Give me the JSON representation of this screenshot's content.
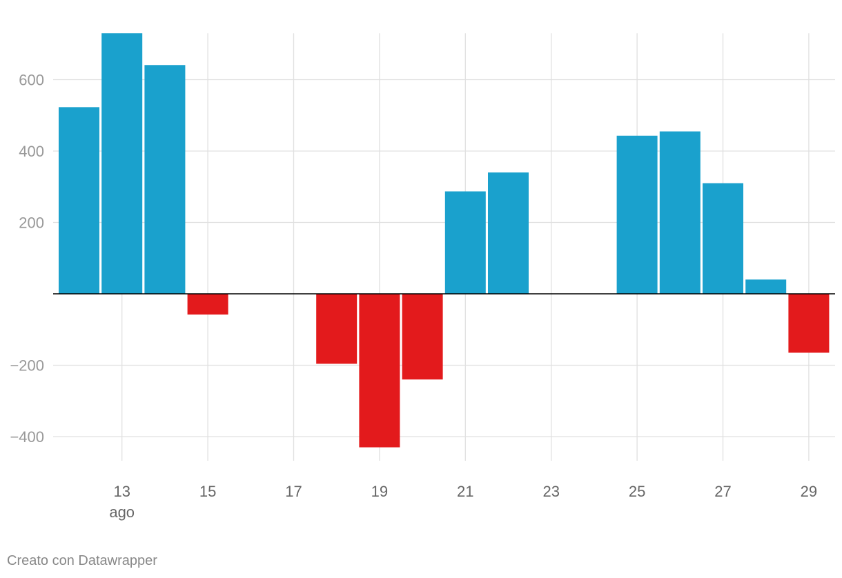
{
  "chart_data": {
    "type": "bar",
    "title": "",
    "xlabel": "",
    "ylabel": "",
    "ylim": [
      -430,
      730
    ],
    "y_ticks": [
      600,
      400,
      200,
      -200,
      -400
    ],
    "y_tick_labels": [
      "600",
      "400",
      "200",
      "−200",
      "−400"
    ],
    "x_ticks": [
      13,
      15,
      17,
      19,
      21,
      23,
      25,
      27,
      29
    ],
    "x_tick_labels": [
      "13",
      "15",
      "17",
      "19",
      "21",
      "23",
      "25",
      "27",
      "29"
    ],
    "x_month_label": "ago",
    "grid": true,
    "positive_color": "#1aa1cd",
    "negative_color": "#e31a1c",
    "days": [
      12,
      13,
      14,
      15,
      16,
      17,
      18,
      19,
      20,
      21,
      22,
      23,
      24,
      25,
      26,
      27,
      28,
      29
    ],
    "values": [
      523,
      730,
      641,
      -58,
      0,
      0,
      -196,
      -430,
      -240,
      287,
      340,
      0,
      0,
      443,
      455,
      310,
      40,
      -165
    ]
  },
  "footer": {
    "credit": "Creato con Datawrapper"
  }
}
